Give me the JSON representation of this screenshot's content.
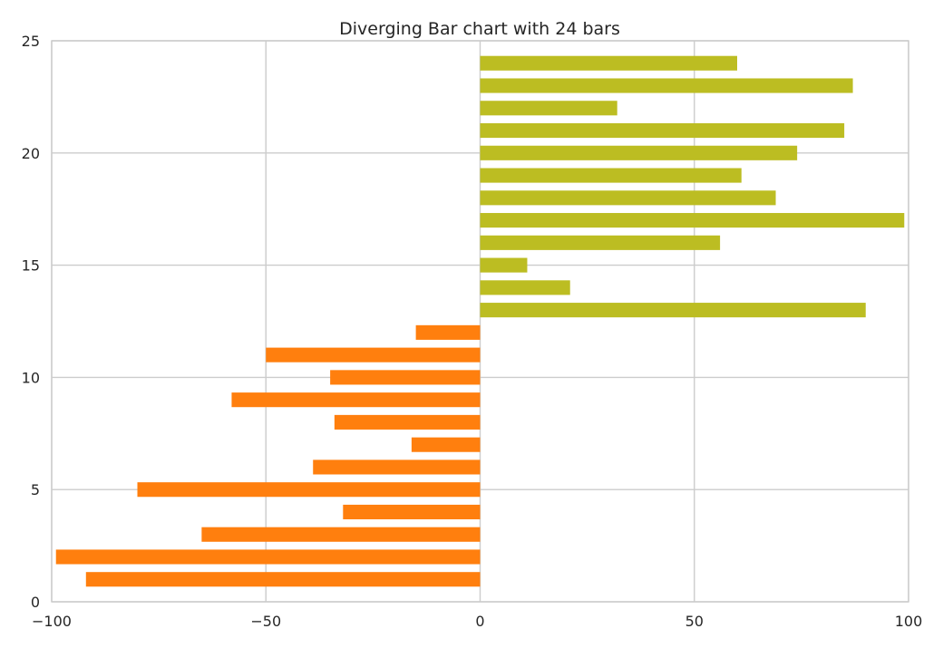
{
  "chart_data": {
    "type": "bar",
    "orientation": "horizontal",
    "title": "Diverging Bar chart with 24 bars",
    "xlabel": "",
    "ylabel": "",
    "xlim": [
      -100,
      100
    ],
    "ylim": [
      0,
      25
    ],
    "x_ticks": [
      "−100",
      "−50",
      "0",
      "50",
      "100"
    ],
    "y_ticks": [
      "0",
      "5",
      "10",
      "15",
      "20",
      "25"
    ],
    "grid": true,
    "legend": "none",
    "colors": {
      "negative": "#ff7f0e",
      "positive": "#bcbd22",
      "grid": "#cccccc",
      "text": "#262626"
    },
    "categories": [
      1,
      2,
      3,
      4,
      5,
      6,
      7,
      8,
      9,
      10,
      11,
      12,
      13,
      14,
      15,
      16,
      17,
      18,
      19,
      20,
      21,
      22,
      23,
      24
    ],
    "values": [
      -92,
      -99,
      -65,
      -32,
      -80,
      -39,
      -16,
      -34,
      -58,
      -35,
      -50,
      -15,
      90,
      21,
      11,
      56,
      99,
      69,
      61,
      74,
      85,
      32,
      87,
      60
    ]
  }
}
